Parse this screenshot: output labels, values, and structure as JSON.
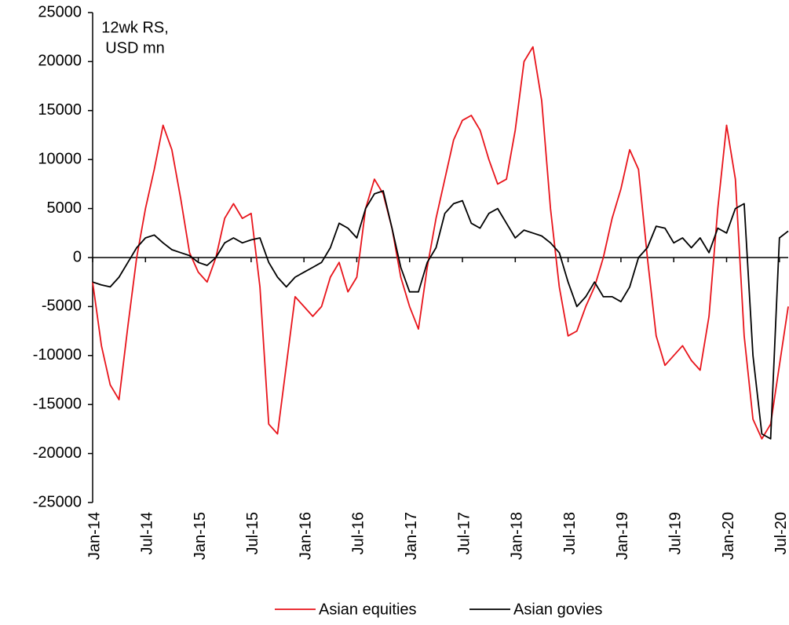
{
  "chart_data": {
    "type": "line",
    "annotation": [
      "12wk RS,",
      "USD mn"
    ],
    "x": [
      "2014-01",
      "2014-02",
      "2014-03",
      "2014-04",
      "2014-05",
      "2014-06",
      "2014-07",
      "2014-08",
      "2014-09",
      "2014-10",
      "2014-11",
      "2014-12",
      "2015-01",
      "2015-02",
      "2015-03",
      "2015-04",
      "2015-05",
      "2015-06",
      "2015-07",
      "2015-08",
      "2015-09",
      "2015-10",
      "2015-11",
      "2015-12",
      "2016-01",
      "2016-02",
      "2016-03",
      "2016-04",
      "2016-05",
      "2016-06",
      "2016-07",
      "2016-08",
      "2016-09",
      "2016-10",
      "2016-11",
      "2016-12",
      "2017-01",
      "2017-02",
      "2017-03",
      "2017-04",
      "2017-05",
      "2017-06",
      "2017-07",
      "2017-08",
      "2017-09",
      "2017-10",
      "2017-11",
      "2017-12",
      "2018-01",
      "2018-02",
      "2018-03",
      "2018-04",
      "2018-05",
      "2018-06",
      "2018-07",
      "2018-08",
      "2018-09",
      "2018-10",
      "2018-11",
      "2018-12",
      "2019-01",
      "2019-02",
      "2019-03",
      "2019-04",
      "2019-05",
      "2019-06",
      "2019-07",
      "2019-08",
      "2019-09",
      "2019-10",
      "2019-11",
      "2019-12",
      "2020-01",
      "2020-02",
      "2020-03",
      "2020-04",
      "2020-05",
      "2020-06",
      "2020-07",
      "2020-08"
    ],
    "series": [
      {
        "name": "Asian equities",
        "color": "#e8141b",
        "values": [
          -2500,
          -9000,
          -13000,
          -14500,
          -7000,
          0,
          5000,
          9000,
          13500,
          11000,
          6000,
          500,
          -1500,
          -2500,
          0,
          4000,
          5500,
          4000,
          4500,
          -3000,
          -17000,
          -18000,
          -11000,
          -4000,
          -5000,
          -6000,
          -5000,
          -2000,
          -500,
          -3500,
          -2000,
          5000,
          8000,
          6500,
          3000,
          -2000,
          -5000,
          -7300,
          -1000,
          4000,
          8000,
          12000,
          14000,
          14500,
          13000,
          10000,
          7500,
          8000,
          13000,
          20000,
          21500,
          16000,
          5000,
          -3000,
          -8000,
          -7500,
          -5000,
          -3000,
          0,
          4000,
          7000,
          11000,
          9000,
          0,
          -8000,
          -11000,
          -10000,
          -9000,
          -10500,
          -11500,
          -6000,
          5000,
          13500,
          8000,
          -8000,
          -16500,
          -18500,
          -17000,
          -11000,
          -5000
        ]
      },
      {
        "name": "Asian govies",
        "color": "#000000",
        "values": [
          -2500,
          -2800,
          -3000,
          -2000,
          -500,
          1000,
          2000,
          2300,
          1500,
          800,
          500,
          200,
          -500,
          -800,
          0,
          1500,
          2000,
          1500,
          1800,
          2000,
          -500,
          -2000,
          -3000,
          -2000,
          -1500,
          -1000,
          -500,
          1000,
          3500,
          3000,
          2000,
          5000,
          6500,
          6800,
          3000,
          -1000,
          -3500,
          -3500,
          -500,
          1000,
          4500,
          5500,
          5800,
          3500,
          3000,
          4500,
          5000,
          3500,
          2000,
          2800,
          2500,
          2200,
          1500,
          500,
          -2500,
          -5000,
          -4000,
          -2500,
          -4000,
          -4000,
          -4500,
          -3000,
          0,
          1000,
          3200,
          3000,
          1500,
          2000,
          1000,
          2000,
          500,
          3000,
          2500,
          5000,
          5500,
          -10000,
          -18000,
          -18500,
          2000,
          2700
        ]
      }
    ],
    "xlim": [
      "2014-01",
      "2020-08"
    ],
    "xticks": [
      {
        "value": "2014-01",
        "label": "Jan-14"
      },
      {
        "value": "2014-07",
        "label": "Jul-14"
      },
      {
        "value": "2015-01",
        "label": "Jan-15"
      },
      {
        "value": "2015-07",
        "label": "Jul-15"
      },
      {
        "value": "2016-01",
        "label": "Jan-16"
      },
      {
        "value": "2016-07",
        "label": "Jul-16"
      },
      {
        "value": "2017-01",
        "label": "Jan-17"
      },
      {
        "value": "2017-07",
        "label": "Jul-17"
      },
      {
        "value": "2018-01",
        "label": "Jan-18"
      },
      {
        "value": "2018-07",
        "label": "Jul-18"
      },
      {
        "value": "2019-01",
        "label": "Jan-19"
      },
      {
        "value": "2019-07",
        "label": "Jul-19"
      },
      {
        "value": "2020-01",
        "label": "Jan-20"
      },
      {
        "value": "2020-07",
        "label": "Jul-20"
      }
    ],
    "ylim": [
      -25000,
      25000
    ],
    "yticks": [
      -25000,
      -20000,
      -15000,
      -10000,
      -5000,
      0,
      5000,
      10000,
      15000,
      20000,
      25000
    ],
    "grid": false,
    "legend": "bottom"
  }
}
